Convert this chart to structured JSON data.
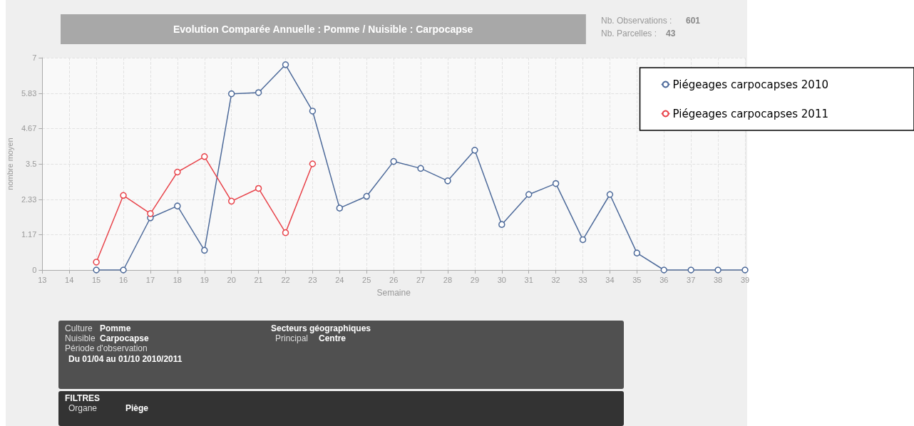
{
  "chart_data": {
    "type": "line",
    "title": "Evolution Comparée Annuelle : Pomme / Nuisible : Carpocapse",
    "xlabel": "Semaine",
    "ylabel": "nombre moyen",
    "x": [
      15,
      16,
      17,
      18,
      19,
      20,
      21,
      22,
      23,
      24,
      25,
      26,
      27,
      28,
      29,
      30,
      31,
      32,
      33,
      34,
      35,
      36,
      37,
      38,
      39
    ],
    "series": [
      {
        "name": "Piégeages carpocapses 2010",
        "color": "#4d6a9a",
        "values": [
          0,
          0,
          1.72,
          2.11,
          0.65,
          5.81,
          5.85,
          6.77,
          5.24,
          2.04,
          2.43,
          3.58,
          3.35,
          2.94,
          3.95,
          1.5,
          2.49,
          2.85,
          1.0,
          2.49,
          0.56,
          0,
          0,
          0,
          0
        ]
      },
      {
        "name": "Piégeages carpocapses 2011",
        "color": "#e8434a",
        "x": [
          15,
          16,
          17,
          18,
          19,
          20,
          21,
          22,
          23
        ],
        "values": [
          0.26,
          2.46,
          1.86,
          3.23,
          3.74,
          2.27,
          2.69,
          1.23,
          3.5
        ]
      }
    ],
    "xlim": [
      13,
      39
    ],
    "xticks": [
      13,
      14,
      15,
      16,
      17,
      18,
      19,
      20,
      21,
      22,
      23,
      24,
      25,
      26,
      27,
      28,
      29,
      30,
      31,
      32,
      33,
      34,
      35,
      36,
      37,
      38,
      39
    ],
    "ylim": [
      0,
      7
    ],
    "yticks": [
      0,
      1.17,
      2.33,
      3.5,
      4.67,
      5.83,
      7
    ],
    "grid": true,
    "legend": "top right",
    "marker": "circle",
    "line_style": "solid",
    "annotations": [
      "Nb. Observations :",
      "601",
      "Nb. Parcelles :",
      "43",
      "Culture",
      "Pomme",
      "Nuisible",
      "Carpocapse",
      "Période d'observation",
      "Du 01/04 au 01/10 2010/2011",
      "Secteurs géographiques",
      "Principal",
      "Centre",
      "FILTRES",
      "Organe",
      "Piège"
    ]
  }
}
